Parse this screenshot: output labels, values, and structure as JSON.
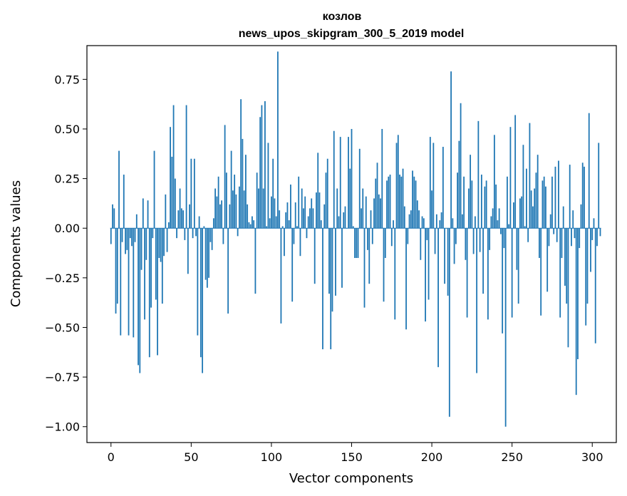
{
  "chart_data": {
    "type": "bar",
    "title": "козлов",
    "subtitle": "news_upos_skipgram_300_5_2019 model",
    "xlabel": "Vector components",
    "ylabel": "Components values",
    "xlim": [
      -15,
      315
    ],
    "ylim": [
      -1.08,
      0.92
    ],
    "xticks": [
      0,
      50,
      100,
      150,
      200,
      250,
      300
    ],
    "yticks": [
      -1.0,
      -0.75,
      -0.5,
      -0.25,
      0.0,
      0.25,
      0.5,
      0.75
    ],
    "ytick_labels": [
      "−1.00",
      "−0.75",
      "−0.50",
      "−0.25",
      "0.00",
      "0.25",
      "0.50",
      "0.75"
    ],
    "bar_color": "#1f77b4",
    "values": [
      -0.08,
      0.12,
      0.1,
      -0.43,
      -0.38,
      0.39,
      -0.54,
      -0.07,
      0.27,
      -0.13,
      -0.11,
      -0.54,
      -0.05,
      -0.09,
      -0.55,
      -0.07,
      0.07,
      -0.69,
      -0.73,
      -0.21,
      0.15,
      -0.46,
      -0.16,
      0.14,
      -0.65,
      -0.4,
      -0.05,
      0.39,
      -0.36,
      -0.64,
      -0.15,
      -0.17,
      -0.38,
      -0.14,
      0.17,
      -0.12,
      0.03,
      0.51,
      0.36,
      0.62,
      0.25,
      -0.05,
      0.09,
      0.2,
      0.1,
      0.09,
      -0.06,
      0.62,
      -0.23,
      0.12,
      0.35,
      -0.05,
      0.35,
      -0.04,
      -0.54,
      0.06,
      -0.65,
      -0.73,
      0.01,
      -0.26,
      -0.3,
      -0.25,
      -0.07,
      -0.11,
      0.05,
      0.2,
      0.16,
      0.26,
      0.12,
      0.14,
      -0.08,
      0.52,
      0.28,
      -0.43,
      0.12,
      0.39,
      0.19,
      0.27,
      0.17,
      -0.04,
      0.21,
      0.65,
      0.45,
      0.19,
      0.37,
      0.12,
      0.03,
      0.02,
      0.06,
      0.04,
      -0.33,
      0.28,
      0.2,
      0.56,
      0.62,
      0.2,
      0.64,
      0.01,
      0.43,
      0.05,
      0.16,
      0.35,
      0.15,
      0.06,
      0.89,
      0.09,
      -0.48,
      0.01,
      -0.14,
      0.08,
      0.13,
      0.04,
      0.22,
      -0.37,
      -0.08,
      0.13,
      0.01,
      0.26,
      -0.14,
      0.2,
      0.1,
      0.16,
      -0.05,
      0.06,
      0.1,
      0.15,
      0.1,
      -0.28,
      0.18,
      0.38,
      0.18,
      0.04,
      -0.61,
      0.12,
      0.28,
      0.35,
      -0.33,
      -0.61,
      -0.42,
      0.49,
      -0.34,
      0.2,
      0.06,
      0.46,
      -0.3,
      0.08,
      0.11,
      0.0,
      0.46,
      0.3,
      0.5,
      0.01,
      -0.15,
      -0.15,
      -0.15,
      0.4,
      0.1,
      0.2,
      -0.4,
      0.16,
      -0.11,
      -0.28,
      0.09,
      -0.08,
      0.15,
      0.25,
      0.33,
      0.17,
      0.15,
      0.5,
      -0.37,
      -0.15,
      0.24,
      0.26,
      0.27,
      -0.09,
      0.04,
      -0.46,
      0.43,
      0.47,
      0.27,
      0.26,
      0.3,
      0.11,
      -0.51,
      -0.08,
      0.07,
      0.09,
      0.29,
      0.26,
      0.24,
      0.14,
      0.09,
      -0.16,
      0.06,
      0.05,
      -0.47,
      -0.06,
      -0.36,
      0.46,
      0.19,
      0.43,
      -0.13,
      0.07,
      -0.7,
      0.04,
      0.08,
      0.41,
      -0.28,
      0.0,
      -0.34,
      -0.95,
      0.79,
      0.05,
      -0.18,
      -0.08,
      0.28,
      0.44,
      0.63,
      0.07,
      0.26,
      -0.16,
      -0.45,
      0.2,
      0.37,
      0.24,
      -0.13,
      0.06,
      -0.73,
      0.54,
      -0.12,
      0.27,
      -0.33,
      0.21,
      0.24,
      -0.46,
      -0.11,
      0.06,
      0.1,
      0.47,
      0.22,
      0.04,
      0.1,
      -0.03,
      -0.53,
      -0.1,
      -1.0,
      0.26,
      0.02,
      0.51,
      -0.45,
      0.13,
      0.57,
      -0.21,
      -0.38,
      0.15,
      0.16,
      0.42,
      0.01,
      0.3,
      -0.07,
      0.53,
      0.19,
      0.11,
      0.2,
      0.28,
      0.37,
      -0.15,
      -0.44,
      0.24,
      0.26,
      0.21,
      -0.32,
      -0.09,
      0.07,
      0.26,
      -0.03,
      0.31,
      -0.07,
      0.34,
      -0.45,
      -0.15,
      0.11,
      -0.29,
      -0.38,
      -0.6,
      0.32,
      -0.09,
      0.09,
      -0.05,
      -0.84,
      -0.66,
      -0.1,
      0.12,
      0.33,
      0.31,
      -0.49,
      -0.38,
      0.58,
      -0.22,
      -0.06,
      0.05,
      -0.58,
      -0.09,
      0.43,
      -0.04
    ]
  }
}
